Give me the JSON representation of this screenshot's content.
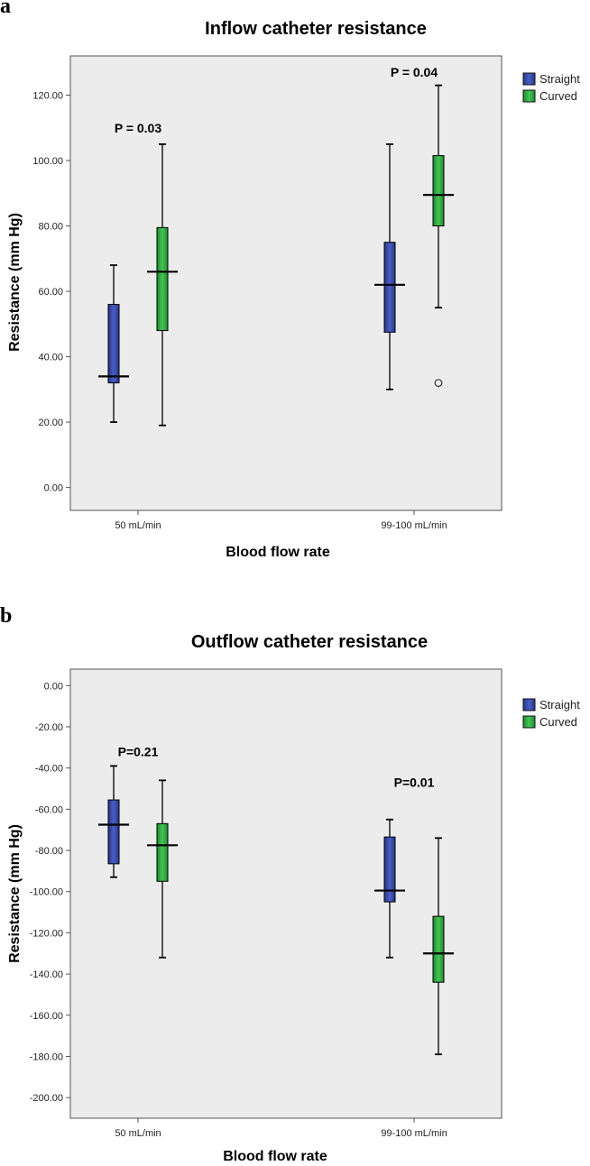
{
  "colors": {
    "straight": "#3a4ba8",
    "curved": "#2eab3f",
    "plot_bg": "#ececec",
    "axis": "#555555"
  },
  "chart_data": [
    {
      "type": "box",
      "panel": "a",
      "title": "Inflow catheter resistance",
      "xlabel": "Blood flow rate",
      "ylabel": "Resistance (mm Hg)",
      "ylim": [
        -7,
        132
      ],
      "yticks": [
        "0.00",
        "20.00",
        "40.00",
        "60.00",
        "80.00",
        "100.00",
        "120.00"
      ],
      "ytick_values": [
        0,
        20,
        40,
        60,
        80,
        100,
        120
      ],
      "categories": [
        "50 mL/min",
        "99-100 mL/min"
      ],
      "legend": [
        "Straight",
        "Curved"
      ],
      "series": [
        {
          "name": "Straight",
          "boxes": [
            {
              "min": 20,
              "q1": 32,
              "median": 34,
              "q3": 56,
              "max": 68,
              "outliers": []
            },
            {
              "min": 30,
              "q1": 47.5,
              "median": 62,
              "q3": 75,
              "max": 105,
              "outliers": []
            }
          ]
        },
        {
          "name": "Curved",
          "boxes": [
            {
              "min": 19,
              "q1": 48,
              "median": 66,
              "q3": 79.5,
              "max": 105,
              "outliers": []
            },
            {
              "min": 55,
              "q1": 80,
              "median": 89.5,
              "q3": 101.5,
              "max": 123,
              "outliers": [
                32
              ]
            }
          ]
        }
      ],
      "annotations": [
        {
          "text": "P = 0.03",
          "category": 0,
          "y": 110
        },
        {
          "text": "P = 0.04",
          "category": 1,
          "y": 127
        }
      ]
    },
    {
      "type": "box",
      "panel": "b",
      "title": "Outflow catheter resistance",
      "xlabel": "Blood flow rate",
      "ylabel": "Resistance (mm Hg)",
      "ylim": [
        -210,
        8
      ],
      "yticks": [
        "0.00",
        "-20.00",
        "-40.00",
        "-60.00",
        "-80.00",
        "-100.00",
        "-120.00",
        "-140.00",
        "-160.00",
        "-180.00",
        "-200.00"
      ],
      "ytick_values": [
        0,
        -20,
        -40,
        -60,
        -80,
        -100,
        -120,
        -140,
        -160,
        -180,
        -200
      ],
      "categories": [
        "50 mL/min",
        "99-100 mL/min"
      ],
      "legend": [
        "Straight",
        "Curved"
      ],
      "series": [
        {
          "name": "Straight",
          "boxes": [
            {
              "min": -93,
              "q1": -86.5,
              "median": -67.5,
              "q3": -55.5,
              "max": -39,
              "outliers": []
            },
            {
              "min": -132,
              "q1": -105,
              "median": -99.5,
              "q3": -73.5,
              "max": -65,
              "outliers": []
            }
          ]
        },
        {
          "name": "Curved",
          "boxes": [
            {
              "min": -132,
              "q1": -95,
              "median": -77.5,
              "q3": -67,
              "max": -46,
              "outliers": []
            },
            {
              "min": -179,
              "q1": -144,
              "median": -130,
              "q3": -112,
              "max": -74,
              "outliers": []
            }
          ]
        }
      ],
      "annotations": [
        {
          "text": "P=0.21",
          "category": 0,
          "y": -32
        },
        {
          "text": "P=0.01",
          "category": 1,
          "y": -47
        }
      ]
    }
  ]
}
